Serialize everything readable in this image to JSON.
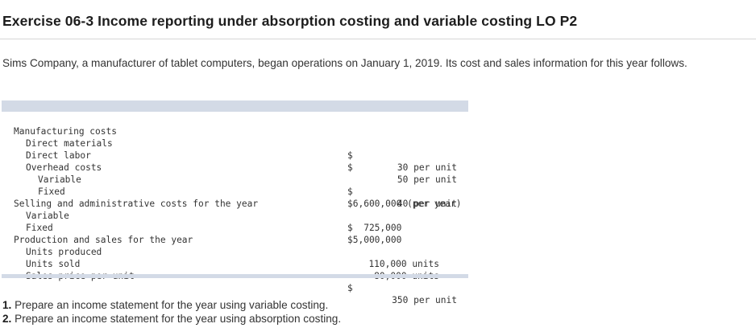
{
  "title": "Exercise 06-3 Income reporting under absorption costing and variable costing LO P2",
  "intro": "Sims Company, a manufacturer of tablet computers, began operations on January 1, 2019. Its cost and sales information for this year follows.",
  "table": {
    "manufacturing_costs": "Manufacturing costs",
    "direct_materials": {
      "label": "Direct materials",
      "dollar": "$",
      "amount": "30 per unit"
    },
    "direct_labor": {
      "label": "Direct labor",
      "dollar": "$",
      "amount": "50 per unit"
    },
    "overhead_costs": "Overhead costs",
    "overhead_variable": {
      "label": "Variable",
      "dollar": "$",
      "amount": "40 per unit"
    },
    "overhead_fixed": {
      "label": "Fixed",
      "amount": "$6,600,000 (per year)"
    },
    "selling_admin": "Selling and administrative costs for the year",
    "sa_variable": {
      "label": "Variable",
      "amount": "$  725,000"
    },
    "sa_fixed": {
      "label": "Fixed",
      "amount": "$5,000,000"
    },
    "production_sales": "Production and sales for the year",
    "units_produced": {
      "label": "Units produced",
      "amount": "110,000 units"
    },
    "units_sold": {
      "label": "Units sold",
      "amount": "80,000 units"
    },
    "sales_price": {
      "label": "Sales price per unit",
      "dollar": "$",
      "amount": "350 per unit"
    }
  },
  "questions": [
    {
      "num": "1.",
      "text": "Prepare an income statement for the year using variable costing."
    },
    {
      "num": "2.",
      "text": "Prepare an income statement for the year using absorption costing."
    }
  ]
}
